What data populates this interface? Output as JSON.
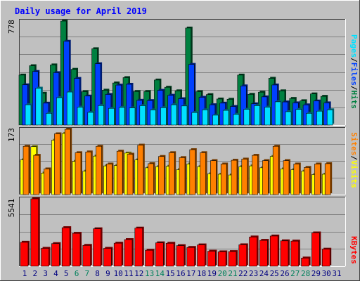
{
  "chart_data": {
    "type": "bar",
    "title": "Daily usage for April 2019",
    "categories": [
      "1",
      "2",
      "3",
      "4",
      "5",
      "6",
      "7",
      "8",
      "9",
      "10",
      "11",
      "12",
      "13",
      "14",
      "15",
      "16",
      "17",
      "18",
      "19",
      "20",
      "21",
      "22",
      "23",
      "24",
      "25",
      "26",
      "27",
      "28",
      "29",
      "30",
      "31"
    ],
    "weekend_days": [
      "6",
      "7",
      "13",
      "14",
      "20",
      "21",
      "27",
      "28"
    ],
    "hits_panel": {
      "max_label": "778",
      "right_label_parts": [
        "Pages",
        "/",
        "Files",
        "/",
        "Hits"
      ],
      "ylim": [
        0,
        778
      ],
      "series": [
        {
          "name": "Hits",
          "color": "#008040",
          "values": [
            374,
            444,
            238,
            450,
            778,
            417,
            250,
            571,
            261,
            315,
            355,
            251,
            251,
            337,
            283,
            256,
            726,
            250,
            228,
            195,
            193,
            374,
            230,
            246,
            350,
            256,
            199,
            182,
            233,
            215,
            0
          ]
        },
        {
          "name": "Files",
          "color": "#0040ff",
          "values": [
            301,
            401,
            164,
            392,
            627,
            349,
            217,
            459,
            229,
            299,
            305,
            185,
            183,
            260,
            223,
            197,
            454,
            208,
            152,
            164,
            139,
            293,
            159,
            211,
            300,
            173,
            166,
            151,
            180,
            166,
            0
          ]
        },
        {
          "name": "Pages",
          "color": "#00e0ff",
          "values": [
            152,
            276,
            88,
            205,
            247,
            134,
            95,
            146,
            125,
            132,
            128,
            145,
            113,
            130,
            152,
            143,
            94,
            114,
            74,
            110,
            80,
            118,
            145,
            134,
            174,
            100,
            117,
            88,
            104,
            114,
            0
          ]
        }
      ]
    },
    "visits_panel": {
      "max_label": "173",
      "right_label_parts": [
        "Sites",
        "/",
        "Visits"
      ],
      "ylim": [
        0,
        173
      ],
      "series": [
        {
          "name": "Visits",
          "color": "#ffff00",
          "values": [
            92,
            127,
            57,
            144,
            162,
            88,
            62,
            102,
            76,
            77,
            110,
            92,
            71,
            74,
            75,
            66,
            81,
            74,
            55,
            54,
            52,
            74,
            76,
            71,
            101,
            68,
            66,
            62,
            53,
            54,
            0
          ]
        },
        {
          "name": "Sites",
          "color": "#ff8000",
          "values": [
            128,
            104,
            68,
            161,
            173,
            111,
            113,
            128,
            81,
            115,
            107,
            131,
            82,
            101,
            111,
            98,
            119,
            111,
            90,
            81,
            91,
            94,
            104,
            90,
            128,
            90,
            81,
            72,
            81,
            82,
            0
          ]
        }
      ]
    },
    "kbytes_panel": {
      "max_label": "5541",
      "right_label": "KBytes",
      "ylim": [
        0,
        5541
      ],
      "series": [
        {
          "name": "KBytes",
          "color": "#ff0000",
          "values": [
            1971,
            5541,
            1473,
            1862,
            3171,
            2707,
            1717,
            3078,
            1473,
            1897,
            2191,
            3134,
            1316,
            1926,
            1891,
            1695,
            1546,
            1755,
            1238,
            1184,
            1206,
            1763,
            2405,
            2130,
            2485,
            2089,
            2068,
            676,
            2740,
            1404,
            0
          ]
        }
      ]
    },
    "colors": {
      "background": "#c0c0c0",
      "gridline": "#808080",
      "title": "#0000ff",
      "weekday_label": "#000080",
      "weekend_label": "#00805c"
    }
  }
}
